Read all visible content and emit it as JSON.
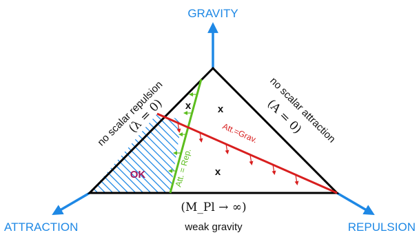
{
  "axes": {
    "top": "GRAVITY",
    "left": "ATTRACTION",
    "right": "REPULSION"
  },
  "edges": {
    "left_text": "no scalar repulsion",
    "left_math": "(λ = 0)",
    "right_text": "no scalar attraction",
    "right_math": "(A = 0)",
    "bottom_math": "(M_Pl → ∞)",
    "bottom_text": "weak gravity"
  },
  "regions": {
    "ok": "OK",
    "x_top_left": "x",
    "x_top_right": "x",
    "x_bottom": "x"
  },
  "lines": {
    "green_label": "Att. = Rep.",
    "red_label": "Att.=Grav."
  },
  "colors": {
    "axis": "#1e88e5",
    "triangle": "#000000",
    "green": "#5cbd1e",
    "red": "#d81e1e",
    "hatch": "#1e88e5",
    "ok": "#a0185f"
  }
}
